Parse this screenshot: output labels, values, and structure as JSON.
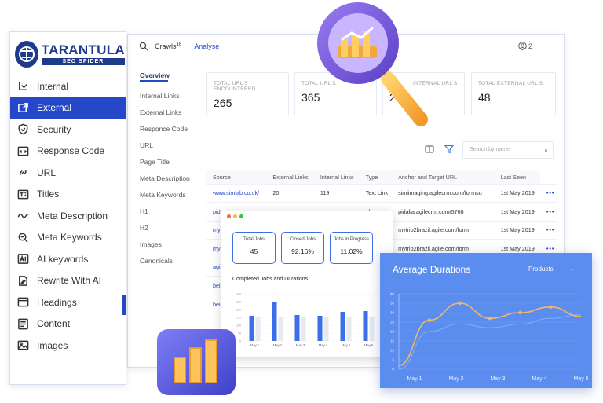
{
  "brand": {
    "title": "TARANTULA",
    "subtitle": "SEO SPIDER"
  },
  "sidebar": {
    "items": [
      {
        "label": "Internal",
        "icon": "import-icon",
        "active": false
      },
      {
        "label": "External",
        "icon": "external-link-icon",
        "active": true
      },
      {
        "label": "Security",
        "icon": "shield-icon",
        "active": false
      },
      {
        "label": "Response Code",
        "icon": "code-window-icon",
        "active": false
      },
      {
        "label": "URL",
        "icon": "link-icon",
        "active": false
      },
      {
        "label": "Titles",
        "icon": "title-icon",
        "active": false
      },
      {
        "label": "Meta Description",
        "icon": "meta-icon",
        "active": false
      },
      {
        "label": "Meta Keywords",
        "icon": "keyword-search-icon",
        "active": false
      },
      {
        "label": "AI keywords",
        "icon": "ai-icon",
        "active": false
      },
      {
        "label": "Rewrite With AI",
        "icon": "rewrite-icon",
        "active": false
      },
      {
        "label": "Headings",
        "icon": "heading-icon",
        "active": false
      },
      {
        "label": "Content",
        "icon": "content-icon",
        "active": false
      },
      {
        "label": "Images",
        "icon": "image-icon",
        "active": false
      }
    ]
  },
  "topbar": {
    "crawls_label": "Crawls",
    "crawls_count": "16",
    "analyse_label": "Analyse",
    "user_count": "2"
  },
  "tabs": [
    "Overview",
    "Internal Links",
    "External Links",
    "Responce Code",
    "URL",
    "Page Title",
    "Meta Description",
    "Meta Keywords",
    "H1",
    "H2",
    "Images",
    "Canonicals"
  ],
  "stats": [
    {
      "label": "TOTAL URL'S ENCOUNTERED",
      "value": "265"
    },
    {
      "label": "TOTAL URL'S",
      "value": "365"
    },
    {
      "label": "INTERNAL URL'S",
      "value": "2"
    },
    {
      "label": "TOTAL EXTERNAL URL'S",
      "value": "48"
    }
  ],
  "search": {
    "placeholder": "Search by name"
  },
  "table": {
    "headers": [
      "Source",
      "External Links",
      "Internal Links",
      "Type",
      "Anchor and Target URL",
      "Last Seen"
    ],
    "rows": [
      [
        "www.simlab.co.uk/",
        "20",
        "119",
        "Text Link",
        "simiimaging.agilecrm.com/formsu",
        "1st May 2019"
      ],
      [
        "pid",
        "",
        "",
        "nk",
        "pidalia.agilecrm.com/5768",
        "1st May 2019"
      ],
      [
        "my",
        "",
        "",
        "nk",
        "mytrip2brazil.agile.com/form",
        "1st May 2019"
      ],
      [
        "my",
        "",
        "",
        "nk",
        "mytrip2brazil.agile.com/form",
        "1st May 2019"
      ],
      [
        "agi",
        "",
        "",
        "",
        "",
        ""
      ],
      [
        "bei",
        "",
        "",
        "",
        "",
        ""
      ],
      [
        "bei",
        "",
        "",
        "",
        "",
        ""
      ]
    ]
  },
  "jobs": {
    "kpis": [
      {
        "label": "Total Jobs",
        "value": "45"
      },
      {
        "label": "Closed Jobs",
        "value": "92.16%"
      },
      {
        "label": "Jobs in Progress",
        "value": "11.02%"
      }
    ],
    "title": "Completed Jobs and Durations",
    "chart_data": {
      "type": "bar",
      "categories": [
        "May 1",
        "May 2",
        "May 3",
        "May 4",
        "May 5",
        "May 6"
      ],
      "series": [
        {
          "values": [
            160,
            250,
            165,
            160,
            185,
            190
          ]
        },
        {
          "values": [
            150,
            150,
            150,
            150,
            150,
            150
          ]
        }
      ],
      "ylim": [
        0,
        300
      ],
      "yticks": [
        0,
        50,
        100,
        150,
        200,
        250,
        300
      ],
      "colors": [
        "#3b6ee8",
        "#e6e9ef"
      ]
    }
  },
  "avg": {
    "title": "Average Durations",
    "select": "Products",
    "chart_data": {
      "type": "line",
      "categories": [
        "May 1",
        "May 2",
        "May 3",
        "May 4",
        "May 5"
      ],
      "series": [
        {
          "values": [
            2,
            26,
            35,
            27,
            30,
            33,
            28
          ]
        },
        {
          "values": [
            0,
            20,
            24,
            22,
            24,
            27,
            29
          ]
        }
      ],
      "x": [
        0,
        1,
        2,
        3,
        4,
        5,
        6
      ],
      "ylim": [
        0,
        40
      ],
      "yticks": [
        0,
        5,
        10,
        15,
        20,
        25,
        30,
        35,
        40
      ],
      "colors": [
        "#f5b860",
        "#7fb5ff"
      ]
    }
  }
}
